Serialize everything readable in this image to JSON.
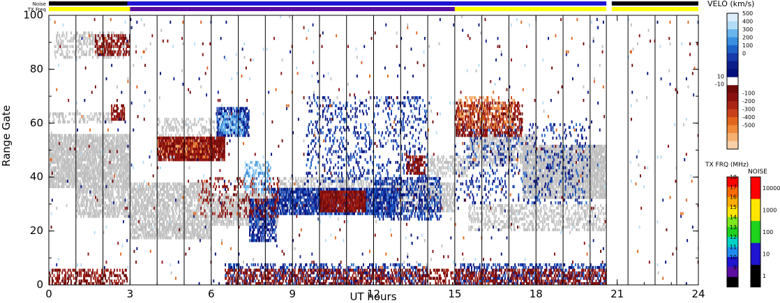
{
  "header": {
    "noise_label": "Noise",
    "txfreq_label": "TX Freq"
  },
  "chart_data": {
    "type": "heatmap",
    "xlabel": "UT hours",
    "ylabel": "Range Gate",
    "xlim": [
      0,
      24
    ],
    "ylim": [
      0,
      100
    ],
    "x_ticks": [
      "0",
      "3",
      "6",
      "9",
      "12",
      "15",
      "18",
      "21",
      "24"
    ],
    "y_ticks": [
      "0",
      "20",
      "40",
      "60",
      "80",
      "100"
    ],
    "scan_boundaries_ut": [
      0,
      1,
      2,
      3,
      4,
      5,
      6,
      7,
      8,
      9,
      10,
      11,
      12,
      13,
      14,
      15,
      16,
      17,
      18,
      19,
      20,
      20.6,
      21.4,
      22.4,
      23.2
    ],
    "data_gap_ut": [
      20.6,
      21.4
    ],
    "status_bars": {
      "noise": [
        {
          "from": 0,
          "to": 2.9,
          "color": "#000000"
        },
        {
          "from": 2.9,
          "to": 15,
          "color": "#1e14d2"
        },
        {
          "from": 15,
          "to": 20.6,
          "color": "#1e14d2"
        },
        {
          "from": 20.8,
          "to": 24,
          "color": "#000000"
        }
      ],
      "txfreq": [
        {
          "from": 0,
          "to": 3,
          "color": "#ffff00"
        },
        {
          "from": 3,
          "to": 15,
          "color": "#5a0fa0"
        },
        {
          "from": 15,
          "to": 20.6,
          "color": "#ffff00"
        },
        {
          "from": 20.8,
          "to": 24,
          "color": "#ffff00"
        }
      ]
    },
    "regions": [
      {
        "kind": "groundscatter",
        "x": [
          0,
          3
        ],
        "y": [
          36,
          56
        ],
        "density": 0.75
      },
      {
        "kind": "groundscatter",
        "x": [
          1.0,
          3.0
        ],
        "y": [
          25,
          37
        ],
        "density": 0.55
      },
      {
        "kind": "groundscatter",
        "x": [
          3,
          6
        ],
        "y": [
          17,
          38
        ],
        "density": 0.6
      },
      {
        "kind": "groundscatter",
        "x": [
          6,
          8.5
        ],
        "y": [
          22,
          34
        ],
        "density": 0.6
      },
      {
        "kind": "groundscatter",
        "x": [
          8.5,
          12
        ],
        "y": [
          28,
          40
        ],
        "density": 0.45
      },
      {
        "kind": "groundscatter",
        "x": [
          12,
          15
        ],
        "y": [
          27,
          38
        ],
        "density": 0.55
      },
      {
        "kind": "groundscatter",
        "x": [
          0,
          2.5
        ],
        "y": [
          60,
          64
        ],
        "density": 0.35
      },
      {
        "kind": "groundscatter",
        "x": [
          0.2,
          2.8
        ],
        "y": [
          84,
          94
        ],
        "density": 0.35
      },
      {
        "kind": "groundscatter",
        "x": [
          17.5,
          20.6
        ],
        "y": [
          32,
          52
        ],
        "density": 0.8
      },
      {
        "kind": "groundscatter",
        "x": [
          15.5,
          18
        ],
        "y": [
          44,
          56
        ],
        "density": 0.5
      },
      {
        "kind": "groundscatter",
        "x": [
          15.5,
          20.6
        ],
        "y": [
          20,
          30
        ],
        "density": 0.35
      },
      {
        "kind": "groundscatter",
        "x": [
          4,
          7.2
        ],
        "y": [
          55,
          62
        ],
        "density": 0.25
      },
      {
        "kind": "groundscatter",
        "x": [
          14,
          15.5
        ],
        "y": [
          40,
          48
        ],
        "density": 0.35
      },
      {
        "kind": "positive",
        "x": [
          8.2,
          12.8
        ],
        "y": [
          26,
          36
        ],
        "density": 0.7
      },
      {
        "kind": "positive",
        "x": [
          6.2,
          7.4
        ],
        "y": [
          55,
          66
        ],
        "density": 0.6
      },
      {
        "kind": "positive",
        "x": [
          7.4,
          8.4
        ],
        "y": [
          16,
          32
        ],
        "density": 0.6
      },
      {
        "kind": "positive",
        "x": [
          9.5,
          14
        ],
        "y": [
          38,
          70
        ],
        "density": 0.15
      },
      {
        "kind": "positive",
        "x": [
          12,
          14.5
        ],
        "y": [
          24,
          40
        ],
        "density": 0.35
      },
      {
        "kind": "positive",
        "x": [
          15,
          20.6
        ],
        "y": [
          0,
          8
        ],
        "density": 0.35
      },
      {
        "kind": "positive",
        "x": [
          6.5,
          14
        ],
        "y": [
          0,
          8
        ],
        "density": 0.3
      },
      {
        "kind": "positive",
        "x": [
          15,
          20
        ],
        "y": [
          30,
          60
        ],
        "density": 0.12
      },
      {
        "kind": "negative",
        "x": [
          10,
          11.7
        ],
        "y": [
          27,
          35
        ],
        "density": 0.9
      },
      {
        "kind": "negative",
        "x": [
          4.0,
          6.5
        ],
        "y": [
          46,
          55
        ],
        "density": 0.9
      },
      {
        "kind": "negative",
        "x": [
          2.3,
          2.8
        ],
        "y": [
          61,
          67
        ],
        "density": 0.6
      },
      {
        "kind": "negative",
        "x": [
          0,
          2.9
        ],
        "y": [
          0,
          6
        ],
        "density": 0.45
      },
      {
        "kind": "negative",
        "x": [
          6.5,
          20.6
        ],
        "y": [
          0,
          6
        ],
        "density": 0.4
      },
      {
        "kind": "negative",
        "x": [
          15,
          17.5
        ],
        "y": [
          55,
          68
        ],
        "density": 0.45
      },
      {
        "kind": "negative",
        "x": [
          5.5,
          8.5
        ],
        "y": [
          25,
          40
        ],
        "density": 0.18
      },
      {
        "kind": "negative",
        "x": [
          1.7,
          3.0
        ],
        "y": [
          85,
          93
        ],
        "density": 0.5
      },
      {
        "kind": "negative",
        "x": [
          13.2,
          13.9
        ],
        "y": [
          41,
          48
        ],
        "density": 0.6
      },
      {
        "kind": "orange",
        "x": [
          4.0,
          6.0
        ],
        "y": [
          47,
          54
        ],
        "density": 0.15
      },
      {
        "kind": "orange",
        "x": [
          15.1,
          17.2
        ],
        "y": [
          58,
          70
        ],
        "density": 0.25
      },
      {
        "kind": "lightblue",
        "x": [
          6.3,
          7.2
        ],
        "y": [
          56,
          64
        ],
        "density": 0.55
      },
      {
        "kind": "lightblue",
        "x": [
          7.2,
          8.2
        ],
        "y": [
          34,
          46
        ],
        "density": 0.35
      },
      {
        "kind": "noise",
        "x": [
          0,
          24
        ],
        "y": [
          0,
          100
        ],
        "density": 0.012
      }
    ]
  },
  "velocity_scale": {
    "title": "VELO (km/s)",
    "ticks_pos": [
      "500",
      "400",
      "300",
      "200",
      "100",
      "0"
    ],
    "ticks_mid": [
      "10",
      "-10"
    ],
    "ticks_neg": [
      "-100",
      "-200",
      "-300",
      "-400",
      "-500"
    ],
    "colors": [
      "#dceefa",
      "#b2dcf5",
      "#6ab6ec",
      "#3a8fe0",
      "#1f63c8",
      "#163aa8",
      "#0d1f8a",
      "#05107a",
      "#ffffff",
      "#6e0a0a",
      "#8a1010",
      "#a82414",
      "#c8401a",
      "#e0661e",
      "#f08a3c",
      "#f6b070",
      "#f8d0a8"
    ]
  },
  "txfreq_scale": {
    "title": "TX FRQ (MHz)",
    "ticks": [
      "18",
      "17",
      "16",
      "15",
      "14",
      "13",
      "12",
      "11",
      "10",
      "9"
    ],
    "colors": [
      "#ff0000",
      "#ff6a00",
      "#ffae00",
      "#ffe600",
      "#7de81e",
      "#1ed21e",
      "#00d2c8",
      "#1e8cf0",
      "#1e14d2",
      "#5a0fa0",
      "#000000"
    ]
  },
  "noise_scale": {
    "title": "NOISE",
    "ticks": [
      "10000",
      "1000",
      "100",
      "10",
      "1"
    ],
    "colors": [
      "#ff0000",
      "#ffe600",
      "#1ed21e",
      "#1e14d2",
      "#000000"
    ]
  }
}
